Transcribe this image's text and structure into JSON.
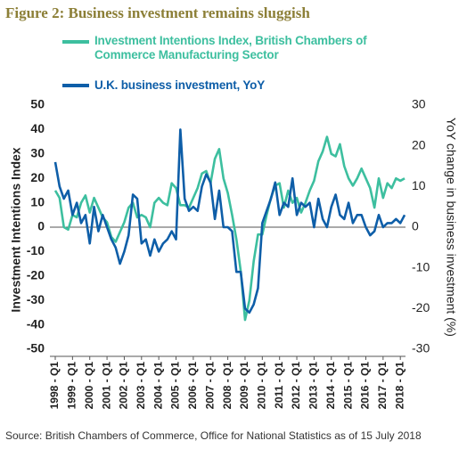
{
  "chart_data": {
    "type": "line",
    "title": "Figure 2: Business investment remains sluggish",
    "ylabel": "Investment Intentions Index",
    "y2label": "YoY change in business investment (%)",
    "source": "Source: British Chambers of Commerce, Office for National Statistics as of 15 July 2018",
    "categories": [
      "1998 - Q1",
      null,
      null,
      null,
      "1999 - Q1",
      null,
      null,
      null,
      "2000 - Q1",
      null,
      null,
      null,
      "2001 - Q1",
      null,
      null,
      null,
      "2002 - Q1",
      null,
      null,
      null,
      "2003 - Q1",
      null,
      null,
      null,
      "2004 - Q1",
      null,
      null,
      null,
      "2005 - Q1",
      null,
      null,
      null,
      "2006 - Q1",
      null,
      null,
      null,
      "2007 - Q1",
      null,
      null,
      null,
      "2008 - Q1",
      null,
      null,
      null,
      "2009 - Q1",
      null,
      null,
      null,
      "2010 - Q1",
      null,
      null,
      null,
      "2011 - Q1",
      null,
      null,
      null,
      "2012 - Q1",
      null,
      null,
      null,
      "2013 - Q1",
      null,
      null,
      null,
      "2014 - Q1",
      null,
      null,
      null,
      "2015 - Q1",
      null,
      null,
      null,
      "2016 - Q1",
      null,
      null,
      null,
      "2017 - Q1",
      null,
      null,
      null,
      "2018 - Q1",
      null
    ],
    "series": [
      {
        "name": "Investment Intentions Index, British Chambers of Commerce Manufacturing Sector",
        "color": "#3dbf9f",
        "values": [
          15,
          12,
          0,
          -1,
          5,
          4,
          10,
          13,
          6,
          12,
          8,
          4,
          2,
          -4,
          -6,
          -2,
          2,
          8,
          10,
          4,
          5,
          4,
          0,
          10,
          12,
          10,
          9,
          18,
          16,
          9,
          9,
          8,
          12,
          16,
          22,
          23,
          18,
          28,
          32,
          20,
          14,
          5,
          -5,
          -18,
          -38,
          -30,
          -14,
          -3,
          -3,
          5,
          12,
          17,
          18,
          8,
          15,
          10,
          12,
          6,
          10,
          15,
          19,
          27,
          31,
          37,
          30,
          29,
          34,
          25,
          20,
          17,
          20,
          24,
          20,
          16,
          8,
          20,
          12,
          18,
          16,
          20,
          19,
          20
        ]
      },
      {
        "name": "U.K. business investment, YoY",
        "color": "#0e5ea8",
        "axis": "y2",
        "values": [
          16,
          10,
          7,
          9,
          3,
          6,
          1,
          3,
          -4,
          5,
          -1,
          3,
          0,
          -3,
          -5,
          -9,
          -6,
          -2,
          8,
          7,
          -4,
          -3,
          -7,
          -3,
          -6,
          -4,
          -3,
          -1,
          -3,
          24,
          7,
          4,
          5,
          4,
          10,
          13,
          11,
          2,
          9,
          0,
          0,
          -1,
          -11,
          -11,
          -20,
          -21,
          -19,
          -15,
          1,
          4,
          7,
          11,
          3,
          6,
          5,
          12,
          3,
          6,
          5,
          6,
          0,
          7,
          2,
          0,
          5,
          8,
          3,
          2,
          6,
          1,
          3,
          3,
          0,
          -2,
          -1,
          3,
          0,
          1,
          1,
          2,
          1,
          3
        ]
      }
    ],
    "ylim": [
      -50,
      50
    ],
    "yticks": [
      50,
      40,
      30,
      20,
      10,
      0,
      -10,
      -20,
      -30,
      -40,
      -50
    ],
    "y2lim": [
      -30,
      30
    ],
    "y2ticks": [
      30,
      20,
      10,
      0,
      -10,
      -20,
      -30
    ]
  }
}
